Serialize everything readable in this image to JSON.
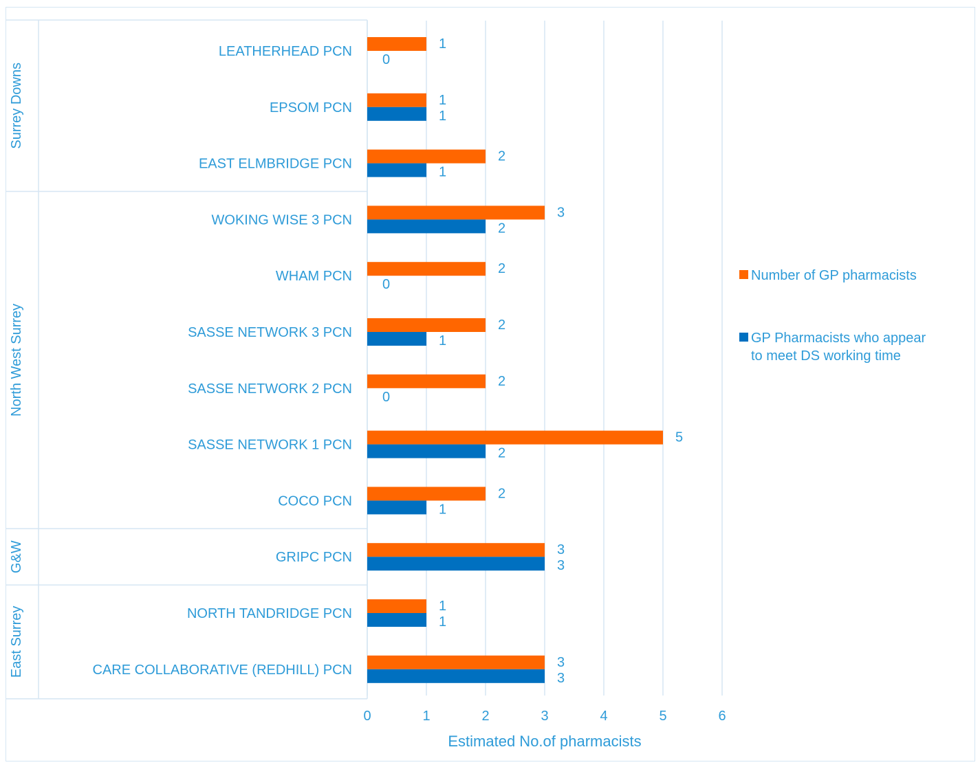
{
  "chart_data": {
    "type": "bar",
    "orientation": "horizontal",
    "xlabel": "Estimated No.of pharmacists",
    "xlim": [
      0,
      6
    ],
    "xticks": [
      0,
      1,
      2,
      3,
      4,
      5,
      6
    ],
    "grid": true,
    "legend_position": "right",
    "groups": [
      {
        "name": "Surrey Downs",
        "categories": [
          "LEATHERHEAD PCN",
          "EPSOM PCN",
          "EAST ELMBRIDGE PCN"
        ]
      },
      {
        "name": "North West Surrey",
        "categories": [
          "WOKING WISE 3 PCN",
          "WHAM PCN",
          "SASSE NETWORK 3 PCN",
          "SASSE NETWORK 2 PCN",
          "SASSE NETWORK 1 PCN",
          "COCO PCN"
        ]
      },
      {
        "name": "G&W",
        "categories": [
          "GRIPC PCN"
        ]
      },
      {
        "name": "East Surrey",
        "categories": [
          "NORTH TANDRIDGE PCN",
          "CARE COLLABORATIVE (REDHILL) PCN"
        ]
      }
    ],
    "categories": [
      "LEATHERHEAD PCN",
      "EPSOM PCN",
      "EAST ELMBRIDGE PCN",
      "WOKING WISE 3 PCN",
      "WHAM PCN",
      "SASSE NETWORK 3 PCN",
      "SASSE NETWORK 2 PCN",
      "SASSE NETWORK 1 PCN",
      "COCO PCN",
      "GRIPC PCN",
      "NORTH TANDRIDGE PCN",
      "CARE COLLABORATIVE (REDHILL) PCN"
    ],
    "series": [
      {
        "name": "Number of GP pharmacists",
        "color": "#ff6600",
        "values": [
          1,
          1,
          2,
          3,
          2,
          2,
          2,
          5,
          2,
          3,
          1,
          3
        ]
      },
      {
        "name": "GP Pharmacists who appear to meet DS working time",
        "color": "#0070c0",
        "values": [
          0,
          1,
          1,
          2,
          0,
          1,
          0,
          2,
          1,
          3,
          1,
          3
        ]
      }
    ],
    "legend": [
      {
        "label": "Number of GP pharmacists",
        "color": "#ff6600"
      },
      {
        "label": "GP Pharmacists who appear to meet DS working time",
        "color": "#0070c0"
      }
    ],
    "text_color": "#2e9bd8",
    "grid_color": "#d6e6f3"
  }
}
